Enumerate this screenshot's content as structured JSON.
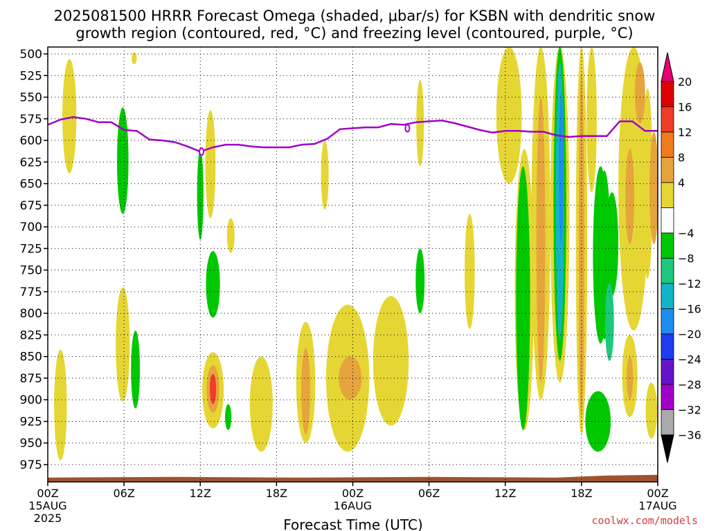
{
  "title_line1": "2025081500 HRRR Forecast Omega (shaded, μbar/s) for KSBN with dendritic snow",
  "title_line2": "growth region (contoured, red, °C) and freezing level (contoured, purple, °C)",
  "credit": "coolwx.com/models",
  "chart_data": {
    "type": "heatmap",
    "xlabel": "Forecast Time (UTC)",
    "x_ticks": [
      {
        "hour": 0,
        "label": "00Z",
        "sub1": "15AUG",
        "sub2": "2025"
      },
      {
        "hour": 6,
        "label": "06Z",
        "sub1": "",
        "sub2": ""
      },
      {
        "hour": 12,
        "label": "12Z",
        "sub1": "",
        "sub2": ""
      },
      {
        "hour": 18,
        "label": "18Z",
        "sub1": "",
        "sub2": ""
      },
      {
        "hour": 24,
        "label": "00Z",
        "sub1": "16AUG",
        "sub2": ""
      },
      {
        "hour": 30,
        "label": "06Z",
        "sub1": "",
        "sub2": ""
      },
      {
        "hour": 36,
        "label": "12Z",
        "sub1": "",
        "sub2": ""
      },
      {
        "hour": 42,
        "label": "18Z",
        "sub1": "",
        "sub2": ""
      },
      {
        "hour": 48,
        "label": "00Z",
        "sub1": "17AUG",
        "sub2": ""
      }
    ],
    "x_range_hours": [
      0,
      48
    ],
    "y_levels_hpa": [
      500,
      525,
      550,
      575,
      600,
      625,
      650,
      675,
      700,
      725,
      750,
      775,
      800,
      825,
      850,
      875,
      900,
      925,
      950,
      975
    ],
    "y_range_hpa": [
      492,
      995
    ],
    "grid": true,
    "colorbar": {
      "labels": [
        "20",
        "16",
        "12",
        "8",
        "4",
        "−4",
        "−8",
        "−12",
        "−16",
        "−20",
        "−24",
        "−28",
        "−32",
        "−36"
      ],
      "colors": [
        "#e00000",
        "#f03c28",
        "#f07a1e",
        "#e6a43c",
        "#e6d634",
        "#ffffff",
        "#00c800",
        "#1cc87c",
        "#14b4c8",
        "#1e8cf0",
        "#1e3cf0",
        "#6414c8",
        "#a000c8",
        "#aaaaaa"
      ],
      "top_arrow_color": "#e6006e",
      "bottom_arrow_color": "#000000"
    },
    "freezing_level": {
      "color": "#a000c8",
      "hours": [
        0,
        1,
        2,
        3,
        4,
        5,
        6,
        7,
        8,
        9,
        10,
        11,
        12,
        13,
        14,
        15,
        16,
        17,
        18,
        19,
        20,
        21,
        22,
        23,
        24,
        25,
        26,
        27,
        28,
        29,
        30,
        31,
        32,
        33,
        34,
        35,
        36,
        37,
        38,
        39,
        40,
        41,
        42,
        43,
        44,
        45,
        46,
        47,
        48
      ],
      "pressure_hpa": [
        582,
        576,
        573,
        575,
        579,
        579,
        588,
        589,
        599,
        600,
        602,
        607,
        613,
        608,
        605,
        605,
        607,
        608,
        608,
        608,
        605,
        604,
        598,
        587,
        586,
        585,
        585,
        581,
        582,
        579,
        578,
        577,
        580,
        584,
        588,
        591,
        589,
        589,
        590,
        590,
        594,
        596,
        595,
        595,
        595,
        578,
        578,
        589,
        589
      ]
    },
    "freezing_level_labels": [
      {
        "hour": 12.1,
        "p": 613,
        "text": "0"
      },
      {
        "hour": 28.3,
        "p": 586,
        "text": "0"
      }
    ],
    "omega_regions": [
      {
        "hour": 1.7,
        "p1": 506,
        "p2": 638,
        "hw": 0.55,
        "value": 4
      },
      {
        "hour": 6.8,
        "p1": 498,
        "p2": 512,
        "hw": 0.2,
        "value": 4
      },
      {
        "hour": 5.9,
        "p1": 562,
        "p2": 685,
        "hw": 0.45,
        "value": -4
      },
      {
        "hour": 1.0,
        "p1": 842,
        "p2": 970,
        "hw": 0.5,
        "value": 4
      },
      {
        "hour": 5.9,
        "p1": 770,
        "p2": 902,
        "hw": 0.55,
        "value": 4
      },
      {
        "hour": 6.9,
        "p1": 820,
        "p2": 910,
        "hw": 0.35,
        "value": -4
      },
      {
        "hour": 12.0,
        "p1": 610,
        "p2": 715,
        "hw": 0.25,
        "value": -4
      },
      {
        "hour": 12.8,
        "p1": 565,
        "p2": 690,
        "hw": 0.4,
        "value": 4
      },
      {
        "hour": 13.0,
        "p1": 728,
        "p2": 805,
        "hw": 0.55,
        "value": -4
      },
      {
        "hour": 14.4,
        "p1": 690,
        "p2": 730,
        "hw": 0.3,
        "value": 4
      },
      {
        "hour": 13.0,
        "p1": 845,
        "p2": 933,
        "hw": 0.85,
        "value": 4
      },
      {
        "hour": 13.0,
        "p1": 860,
        "p2": 915,
        "hw": 0.5,
        "value": 8
      },
      {
        "hour": 13.0,
        "p1": 870,
        "p2": 905,
        "hw": 0.25,
        "value": 16
      },
      {
        "hour": 14.2,
        "p1": 905,
        "p2": 935,
        "hw": 0.25,
        "value": -4
      },
      {
        "hour": 16.8,
        "p1": 850,
        "p2": 960,
        "hw": 0.9,
        "value": 4
      },
      {
        "hour": 20.3,
        "p1": 810,
        "p2": 950,
        "hw": 0.75,
        "value": 4
      },
      {
        "hour": 20.3,
        "p1": 840,
        "p2": 940,
        "hw": 0.35,
        "value": 8
      },
      {
        "hour": 21.8,
        "p1": 600,
        "p2": 680,
        "hw": 0.3,
        "value": 4
      },
      {
        "hour": 23.6,
        "p1": 790,
        "p2": 960,
        "hw": 1.7,
        "value": 4
      },
      {
        "hour": 27.0,
        "p1": 780,
        "p2": 930,
        "hw": 1.4,
        "value": 4
      },
      {
        "hour": 23.8,
        "p1": 850,
        "p2": 900,
        "hw": 0.9,
        "value": 8
      },
      {
        "hour": 29.3,
        "p1": 530,
        "p2": 630,
        "hw": 0.3,
        "value": 4
      },
      {
        "hour": 29.3,
        "p1": 725,
        "p2": 800,
        "hw": 0.35,
        "value": -4
      },
      {
        "hour": 33.2,
        "p1": 685,
        "p2": 818,
        "hw": 0.4,
        "value": 4
      },
      {
        "hour": 36.3,
        "p1": 492,
        "p2": 650,
        "hw": 1.0,
        "value": 4
      },
      {
        "hour": 37.5,
        "p1": 610,
        "p2": 935,
        "hw": 0.75,
        "value": 4
      },
      {
        "hour": 37.4,
        "p1": 630,
        "p2": 935,
        "hw": 0.55,
        "value": -4
      },
      {
        "hour": 38.8,
        "p1": 492,
        "p2": 900,
        "hw": 0.75,
        "value": 4
      },
      {
        "hour": 38.8,
        "p1": 550,
        "p2": 880,
        "hw": 0.35,
        "value": 8
      },
      {
        "hour": 40.3,
        "p1": 492,
        "p2": 880,
        "hw": 0.75,
        "value": 4
      },
      {
        "hour": 40.3,
        "p1": 492,
        "p2": 855,
        "hw": 0.5,
        "value": -4
      },
      {
        "hour": 40.3,
        "p1": 510,
        "p2": 830,
        "hw": 0.32,
        "value": -12
      },
      {
        "hour": 40.4,
        "p1": 545,
        "p2": 720,
        "hw": 0.18,
        "value": -16
      },
      {
        "hour": 42.0,
        "p1": 492,
        "p2": 940,
        "hw": 0.45,
        "value": 4
      },
      {
        "hour": 42.0,
        "p1": 520,
        "p2": 920,
        "hw": 0.22,
        "value": 8
      },
      {
        "hour": 42.8,
        "p1": 492,
        "p2": 660,
        "hw": 0.4,
        "value": 4
      },
      {
        "hour": 43.5,
        "p1": 630,
        "p2": 835,
        "hw": 0.6,
        "value": -4
      },
      {
        "hour": 43.8,
        "p1": 635,
        "p2": 830,
        "hw": 0.5,
        "value": -4
      },
      {
        "hour": 44.4,
        "p1": 660,
        "p2": 780,
        "hw": 0.5,
        "value": -4
      },
      {
        "hour": 44.2,
        "p1": 765,
        "p2": 855,
        "hw": 0.35,
        "value": -8
      },
      {
        "hour": 43.3,
        "p1": 890,
        "p2": 960,
        "hw": 1.0,
        "value": -4
      },
      {
        "hour": 46.1,
        "p1": 492,
        "p2": 820,
        "hw": 1.2,
        "value": 4
      },
      {
        "hour": 45.8,
        "p1": 610,
        "p2": 720,
        "hw": 0.35,
        "value": 8
      },
      {
        "hour": 46.6,
        "p1": 510,
        "p2": 580,
        "hw": 0.4,
        "value": 8
      },
      {
        "hour": 45.8,
        "p1": 825,
        "p2": 920,
        "hw": 0.6,
        "value": 4
      },
      {
        "hour": 45.8,
        "p1": 850,
        "p2": 900,
        "hw": 0.25,
        "value": 8
      },
      {
        "hour": 47.5,
        "p1": 880,
        "p2": 945,
        "hw": 0.45,
        "value": 4
      },
      {
        "hour": 47.2,
        "p1": 540,
        "p2": 760,
        "hw": 0.4,
        "value": 4
      },
      {
        "hour": 47.7,
        "p1": 590,
        "p2": 720,
        "hw": 0.35,
        "value": 8
      }
    ],
    "terrain": {
      "color": "#a0522d",
      "top_hpa": 990
    }
  }
}
